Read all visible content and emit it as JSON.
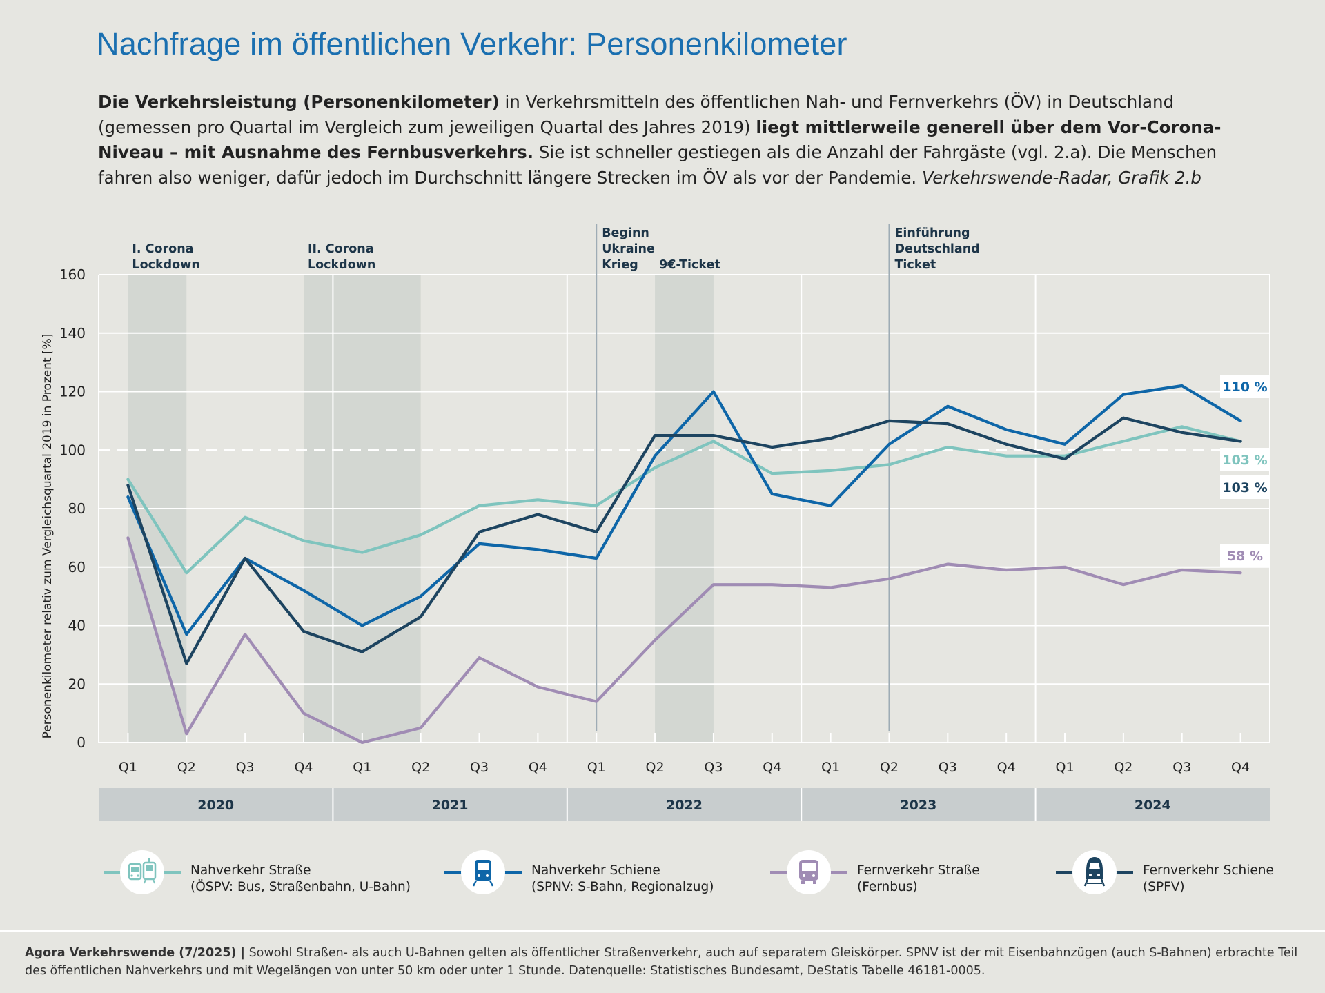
{
  "title": "Nachfrage im öffentlichen Verkehr: Personenkilometer",
  "intro": {
    "p1_bold": "Die Verkehrsleistung (Personenkilometer)",
    "p2": " in Verkehrsmitteln des öffentlichen Nah- und Fernverkehrs (ÖV) in Deutschland (gemessen pro Quartal im Vergleich zum jeweiligen Quartal des Jahres 2019) ",
    "p3_bold": "liegt mittlerweile generell über dem Vor-Corona-Niveau – mit Ausnahme des Fernbusverkehrs.",
    "p4": " Sie ist schneller gestiegen als die Anzahl der Fahrgäste (vgl. 2.a). Die Menschen fahren also weniger, dafür jedoch im Durchschnitt längere Strecken im ÖV als vor der Pandemie. ",
    "p5_italic": "Verkehrswende-Radar, Grafik 2.b"
  },
  "chart_data": {
    "type": "line",
    "ylabel": "Personenkilometer relativ zum Vergleichsquartal 2019 in Prozent [%]",
    "ylim": [
      0,
      160
    ],
    "yticks": [
      0,
      20,
      40,
      60,
      80,
      100,
      120,
      140,
      160
    ],
    "reference_line": 100,
    "grid": true,
    "x": [
      "Q1",
      "Q2",
      "Q3",
      "Q4",
      "Q1",
      "Q2",
      "Q3",
      "Q4",
      "Q1",
      "Q2",
      "Q3",
      "Q4",
      "Q1",
      "Q2",
      "Q3",
      "Q4",
      "Q1",
      "Q2",
      "Q3",
      "Q4"
    ],
    "years": [
      "2020",
      "2021",
      "2022",
      "2023",
      "2024"
    ],
    "series": [
      {
        "name": "Nahverkehr Straße",
        "color": "#7fc4be",
        "end_label": "103 %",
        "values": [
          90,
          58,
          77,
          69,
          65,
          71,
          81,
          83,
          81,
          94,
          103,
          92,
          93,
          95,
          101,
          98,
          98,
          103,
          108,
          103
        ]
      },
      {
        "name": "Nahverkehr Schiene",
        "color": "#0e66a8",
        "end_label": "110 %",
        "values": [
          84,
          37,
          63,
          52,
          40,
          50,
          68,
          66,
          63,
          98,
          120,
          85,
          81,
          102,
          115,
          107,
          102,
          119,
          122,
          110
        ]
      },
      {
        "name": "Fernverkehr Straße",
        "color": "#a08cb4",
        "end_label": "58 %",
        "values": [
          70,
          3,
          37,
          10,
          0,
          5,
          29,
          19,
          14,
          35,
          54,
          54,
          53,
          56,
          61,
          59,
          60,
          54,
          59,
          58
        ]
      },
      {
        "name": "Fernverkehr Schiene",
        "color": "#1d4460",
        "end_label": "103 %",
        "values": [
          88,
          27,
          63,
          38,
          31,
          43,
          72,
          78,
          72,
          105,
          105,
          101,
          104,
          110,
          109,
          102,
          97,
          111,
          106,
          103
        ]
      }
    ],
    "shaded_periods": [
      {
        "from": 0,
        "to": 1,
        "label": "I. Corona Lockdown"
      },
      {
        "from": 3,
        "to": 5,
        "label": "II. Corona Lockdown"
      },
      {
        "from": 9,
        "to": 10,
        "label": "9€-Ticket"
      }
    ],
    "event_lines": [
      {
        "at": 8,
        "label": "Beginn Ukraine Krieg"
      },
      {
        "at": 13,
        "label": "Einführung Deutschland Ticket"
      }
    ]
  },
  "legend": [
    {
      "line1": "Nahverkehr Straße",
      "line2": "(ÖSPV: Bus, Straßenbahn, U-Bahn)",
      "color": "#7fc4be",
      "icon": "tram-bus-icon"
    },
    {
      "line1": "Nahverkehr Schiene",
      "line2": "(SPNV: S-Bahn, Regionalzug)",
      "color": "#0e66a8",
      "icon": "regional-train-icon"
    },
    {
      "line1": "Fernverkehr Straße",
      "line2": "(Fernbus)",
      "color": "#a08cb4",
      "icon": "coach-bus-icon"
    },
    {
      "line1": "Fernverkehr Schiene",
      "line2": "(SPFV)",
      "color": "#1d4460",
      "icon": "high-speed-train-icon"
    }
  ],
  "footer": {
    "source_bold": "Agora Verkehrswende (7/2025) |",
    "text": " Sowohl Straßen- als auch U-Bahnen gelten als öffentlicher Straßenverkehr, auch auf separatem Gleiskörper. SPNV ist der mit Eisenbahnzügen (auch S-Bahnen) erbrachte Teil des öffentlichen Nahverkehrs und mit Wegelängen von unter 50 km oder unter 1 Stunde. Datenquelle: Statistisches Bundesamt, DeStatis Tabelle 46181-0005."
  }
}
